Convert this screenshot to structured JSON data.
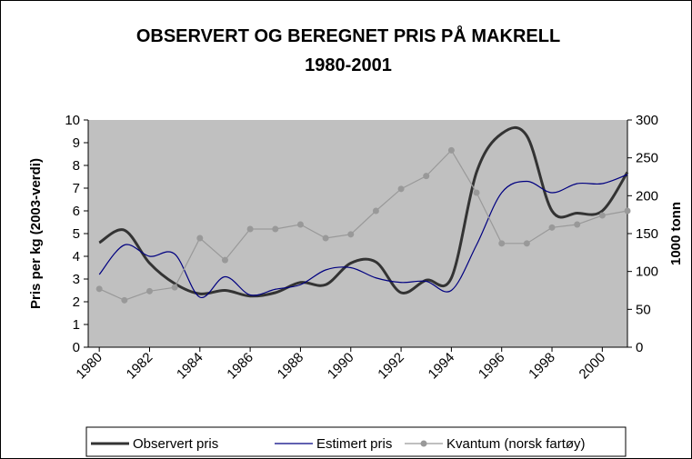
{
  "chart_data": {
    "type": "line",
    "title": "OBSERVERT OG BEREGNET PRIS PÅ MAKRELL",
    "subtitle": "1980-2001",
    "y_label": "Pris per kg (2003-verdi)",
    "y2_label": "1000 tonn",
    "x": [
      1980,
      1981,
      1982,
      1983,
      1984,
      1985,
      1986,
      1987,
      1988,
      1989,
      1990,
      1991,
      1992,
      1993,
      1994,
      1995,
      1996,
      1997,
      1998,
      1999,
      2000,
      2001
    ],
    "series": [
      {
        "name": "Observert pris",
        "color": "#333333",
        "values": [
          4.6,
          5.15,
          3.7,
          2.8,
          2.35,
          2.5,
          2.25,
          2.4,
          2.85,
          2.75,
          3.7,
          3.75,
          2.4,
          2.95,
          3.05,
          7.7,
          9.4,
          9.3,
          6.0,
          5.9,
          6.0,
          7.7
        ]
      },
      {
        "name": "Estimert pris",
        "color": "#000080",
        "values": [
          3.2,
          4.5,
          4.0,
          4.1,
          2.2,
          3.1,
          2.3,
          2.55,
          2.75,
          3.4,
          3.5,
          3.05,
          2.85,
          2.9,
          2.5,
          4.5,
          6.8,
          7.3,
          6.8,
          7.2,
          7.2,
          7.6
        ]
      },
      {
        "name": "Kvantum (norsk fartøy)",
        "color": "#999999",
        "axis": "y2",
        "values": [
          77,
          62,
          74,
          79,
          144,
          115,
          156,
          156,
          162,
          144,
          149,
          180,
          209,
          226,
          260,
          204,
          137,
          137,
          158,
          162,
          174,
          180
        ]
      }
    ],
    "xlim": [
      1979.56,
      2001.0
    ],
    "xticks": [
      1980,
      1982,
      1984,
      1986,
      1988,
      1990,
      1992,
      1994,
      1996,
      1998,
      2000
    ],
    "ylim": [
      0,
      10
    ],
    "yticks": [
      0,
      1,
      2,
      3,
      4,
      5,
      6,
      7,
      8,
      9,
      10
    ],
    "y2lim": [
      0,
      300
    ],
    "y2ticks": [
      0,
      50,
      100,
      150,
      200,
      250,
      300
    ],
    "legend": "bottom"
  }
}
